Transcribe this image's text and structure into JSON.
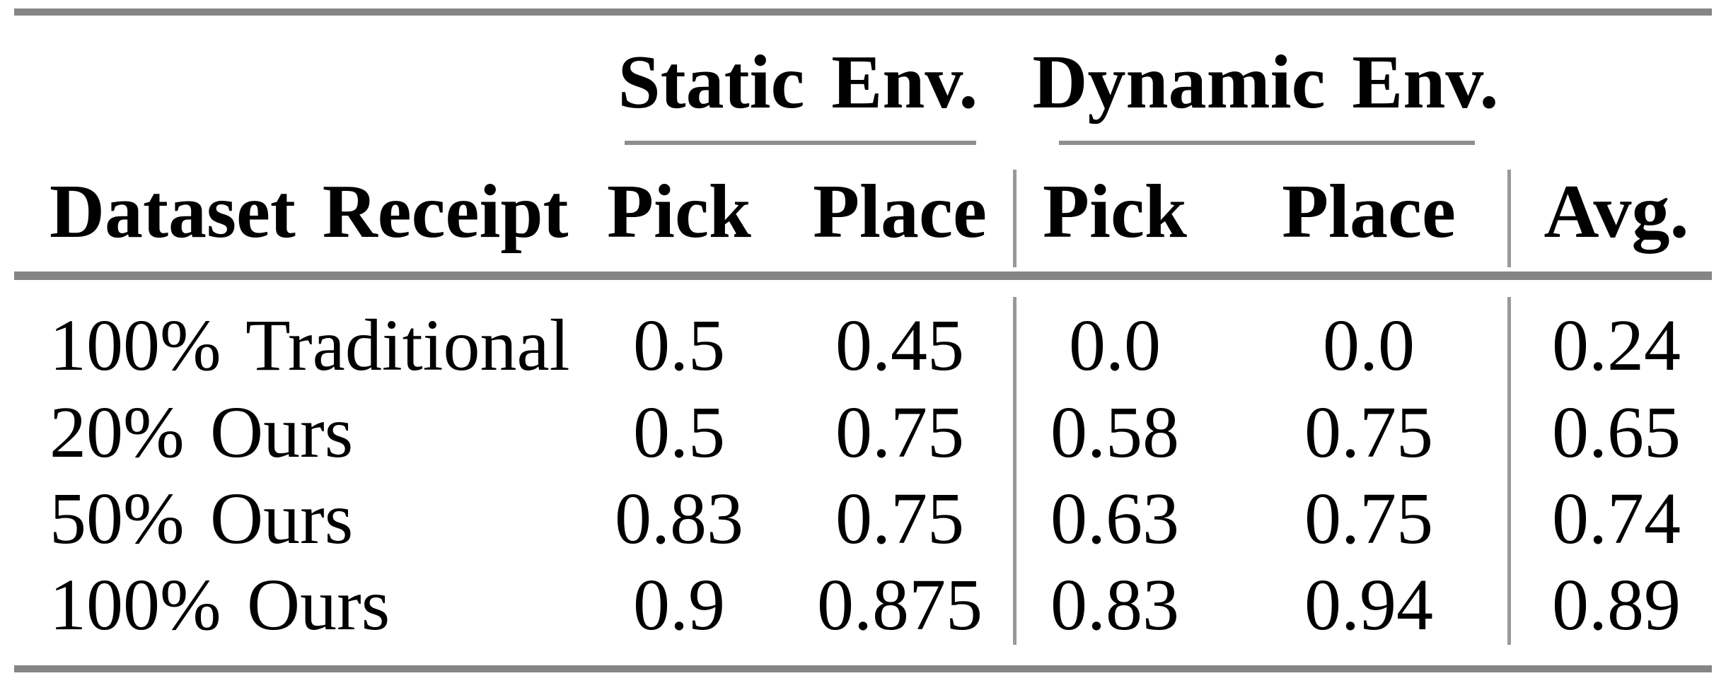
{
  "table": {
    "column_groups": [
      {
        "label": "Static Env."
      },
      {
        "label": "Dynamic Env."
      }
    ],
    "headers": {
      "row_header": "Dataset Receipt",
      "static_pick": "Pick",
      "static_place": "Place",
      "dynamic_pick": "Pick",
      "dynamic_place": "Place",
      "avg": "Avg."
    },
    "rows": [
      {
        "label": "100% Traditional",
        "static_pick": "0.5",
        "static_place": "0.45",
        "dynamic_pick": "0.0",
        "dynamic_place": "0.0",
        "avg": "0.24"
      },
      {
        "label": "20% Ours",
        "static_pick": "0.5",
        "static_place": "0.75",
        "dynamic_pick": "0.58",
        "dynamic_place": "0.75",
        "avg": "0.65"
      },
      {
        "label": "50% Ours",
        "static_pick": "0.83",
        "static_place": "0.75",
        "dynamic_pick": "0.63",
        "dynamic_place": "0.75",
        "avg": "0.74"
      },
      {
        "label": "100% Ours",
        "static_pick": "0.9",
        "static_place": "0.875",
        "dynamic_pick": "0.83",
        "dynamic_place": "0.94",
        "avg": "0.89"
      }
    ],
    "colors": {
      "rule_heavy": "#858585",
      "rule_light": "#8e8e8e",
      "vertical_rule": "#999999",
      "text": "#000000",
      "background": "#ffffff"
    }
  }
}
